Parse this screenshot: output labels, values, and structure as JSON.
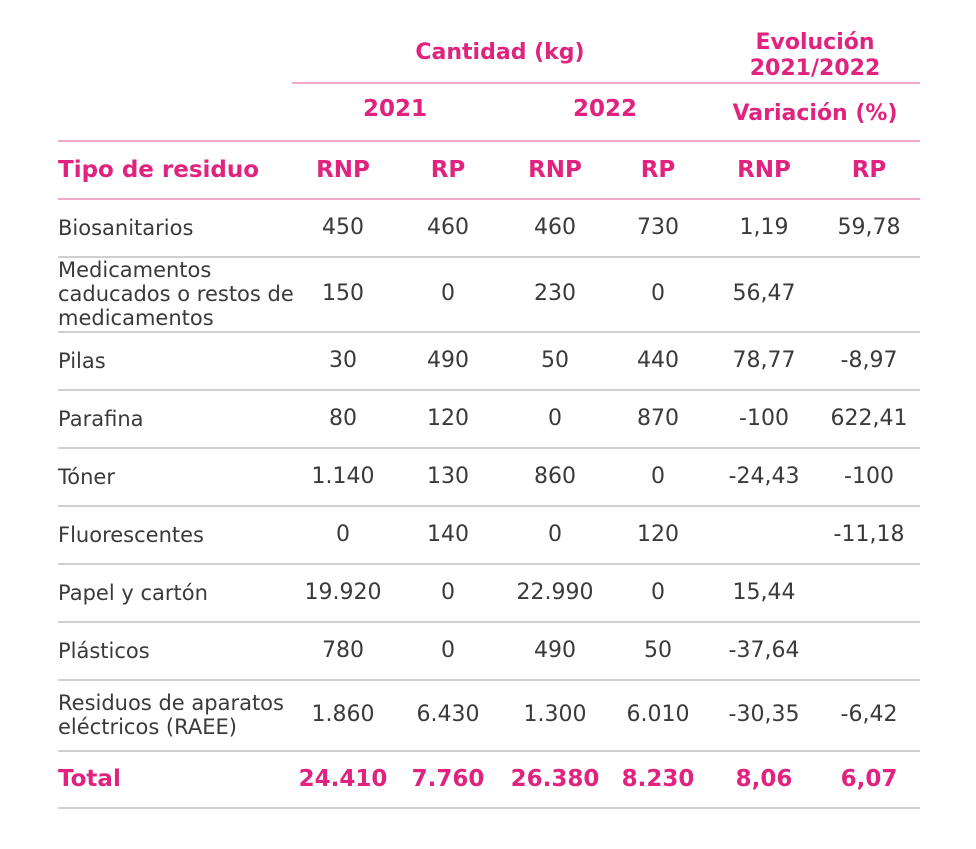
{
  "header": {
    "cantidad": "Cantidad (kg)",
    "evolucion_line1": "Evolución",
    "evolucion_line2": "2021/2022",
    "year_2021": "2021",
    "year_2022": "2022",
    "variacion": "Variación (%)",
    "tipo": "Tipo de residuo",
    "cols": [
      "RNP",
      "RP",
      "RNP",
      "RP",
      "RNP",
      "RP"
    ]
  },
  "rows": [
    {
      "label": "Biosanitarios",
      "values": [
        "450",
        "460",
        "460",
        "730",
        "1,19",
        "59,78"
      ]
    },
    {
      "label": "Medicamentos\ncaducados o restos de\nmedicamentos",
      "values": [
        "150",
        "0",
        "230",
        "0",
        "56,47",
        ""
      ]
    },
    {
      "label": "Pilas",
      "values": [
        "30",
        "490",
        "50",
        "440",
        "78,77",
        "-8,97"
      ]
    },
    {
      "label": "Parafina",
      "values": [
        "80",
        "120",
        "0",
        "870",
        "-100",
        "622,41"
      ]
    },
    {
      "label": "Tóner",
      "values": [
        "1.140",
        "130",
        "860",
        "0",
        "-24,43",
        "-100"
      ]
    },
    {
      "label": "Fluorescentes",
      "values": [
        "0",
        "140",
        "0",
        "120",
        "",
        "-11,18"
      ]
    },
    {
      "label": "Papel y cartón",
      "values": [
        "19.920",
        "0",
        "22.990",
        "0",
        "15,44",
        ""
      ]
    },
    {
      "label": "Plásticos",
      "values": [
        "780",
        "0",
        "490",
        "50",
        "-37,64",
        ""
      ]
    },
    {
      "label": "Residuos de aparatos\neléctricos (RAEE)",
      "values": [
        "1.860",
        "6.430",
        "1.300",
        "6.010",
        "-30,35",
        "-6,42"
      ]
    }
  ],
  "total": {
    "label": "Total",
    "values": [
      "24.410",
      "7.760",
      "26.380",
      "8.230",
      "8,06",
      "6,07"
    ]
  },
  "colors": {
    "accent": "#e0237e",
    "pink_line": "#f0a8cb",
    "gray_line": "#cfcfcf"
  }
}
